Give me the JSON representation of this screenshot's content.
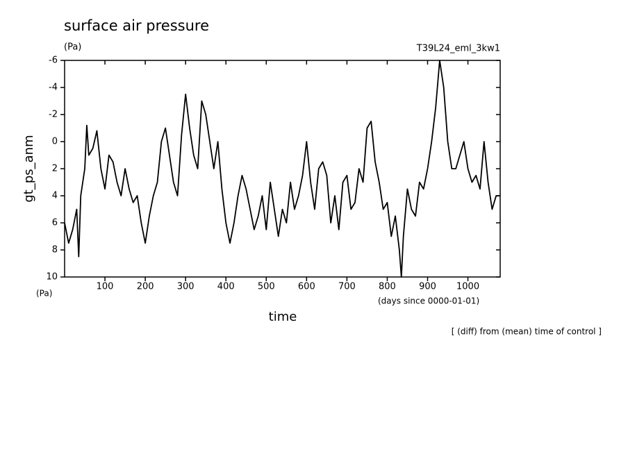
{
  "chart_data": {
    "type": "line",
    "title": "surface air pressure",
    "unit_top": "(Pa)",
    "run_label": "T39L24_eml_3kw1",
    "y_label": "gt_ps_anm",
    "unit_bottom": "(Pa)",
    "x_unit": "(days since 0000-01-01)",
    "x_label": "time",
    "note": "[ (diff) from (mean) time of control ]",
    "color": "#000000",
    "y_inverted": true,
    "xlim": [
      0,
      1080
    ],
    "xticks": [
      100,
      200,
      300,
      400,
      500,
      600,
      700,
      800,
      900,
      1000
    ],
    "ylim": [
      -6,
      10
    ],
    "yticks": [
      -6,
      -4,
      -2,
      0,
      2,
      4,
      6,
      8,
      10
    ],
    "x": [
      0,
      10,
      20,
      30,
      35,
      40,
      50,
      55,
      60,
      70,
      80,
      90,
      100,
      110,
      120,
      130,
      140,
      150,
      160,
      170,
      180,
      190,
      200,
      210,
      220,
      230,
      240,
      250,
      260,
      270,
      280,
      290,
      300,
      310,
      320,
      330,
      340,
      350,
      360,
      370,
      380,
      390,
      400,
      410,
      420,
      430,
      440,
      450,
      460,
      470,
      480,
      490,
      500,
      510,
      520,
      530,
      540,
      550,
      560,
      570,
      580,
      590,
      600,
      610,
      620,
      630,
      640,
      650,
      660,
      670,
      680,
      690,
      700,
      710,
      720,
      730,
      740,
      750,
      760,
      770,
      780,
      790,
      800,
      810,
      820,
      830,
      835,
      840,
      850,
      860,
      870,
      880,
      890,
      900,
      910,
      920,
      930,
      940,
      945,
      950,
      960,
      970,
      980,
      990,
      1000,
      1010,
      1020,
      1030,
      1040,
      1050,
      1060,
      1070,
      1080
    ],
    "values": [
      6,
      7.5,
      6.5,
      5,
      8.5,
      4,
      2,
      -1.2,
      1,
      0.5,
      -0.8,
      2,
      3.5,
      1,
      1.5,
      3,
      4,
      2,
      3.5,
      4.5,
      4,
      6,
      7.5,
      5.5,
      4,
      3,
      0,
      -1,
      1,
      3,
      4,
      -0.5,
      -3.5,
      -1,
      1,
      2,
      -3,
      -2,
      0,
      2,
      0,
      3.5,
      6,
      7.5,
      6,
      4,
      2.5,
      3.5,
      5,
      6.5,
      5.5,
      4,
      6.5,
      3,
      5,
      7,
      5,
      6,
      3,
      5,
      4,
      2.5,
      0,
      3,
      5,
      2,
      1.5,
      2.5,
      6,
      4,
      6.5,
      3,
      2.5,
      5,
      4.5,
      2,
      3,
      -1,
      -1.5,
      1.5,
      3,
      5,
      4.5,
      7,
      5.5,
      8,
      10,
      7,
      3.5,
      5,
      5.5,
      3,
      3.5,
      2,
      0,
      -2.5,
      -6,
      -4,
      -2,
      0,
      2,
      2,
      1,
      0,
      2,
      3,
      2.5,
      3.5,
      0,
      3,
      5,
      4,
      4
    ]
  }
}
